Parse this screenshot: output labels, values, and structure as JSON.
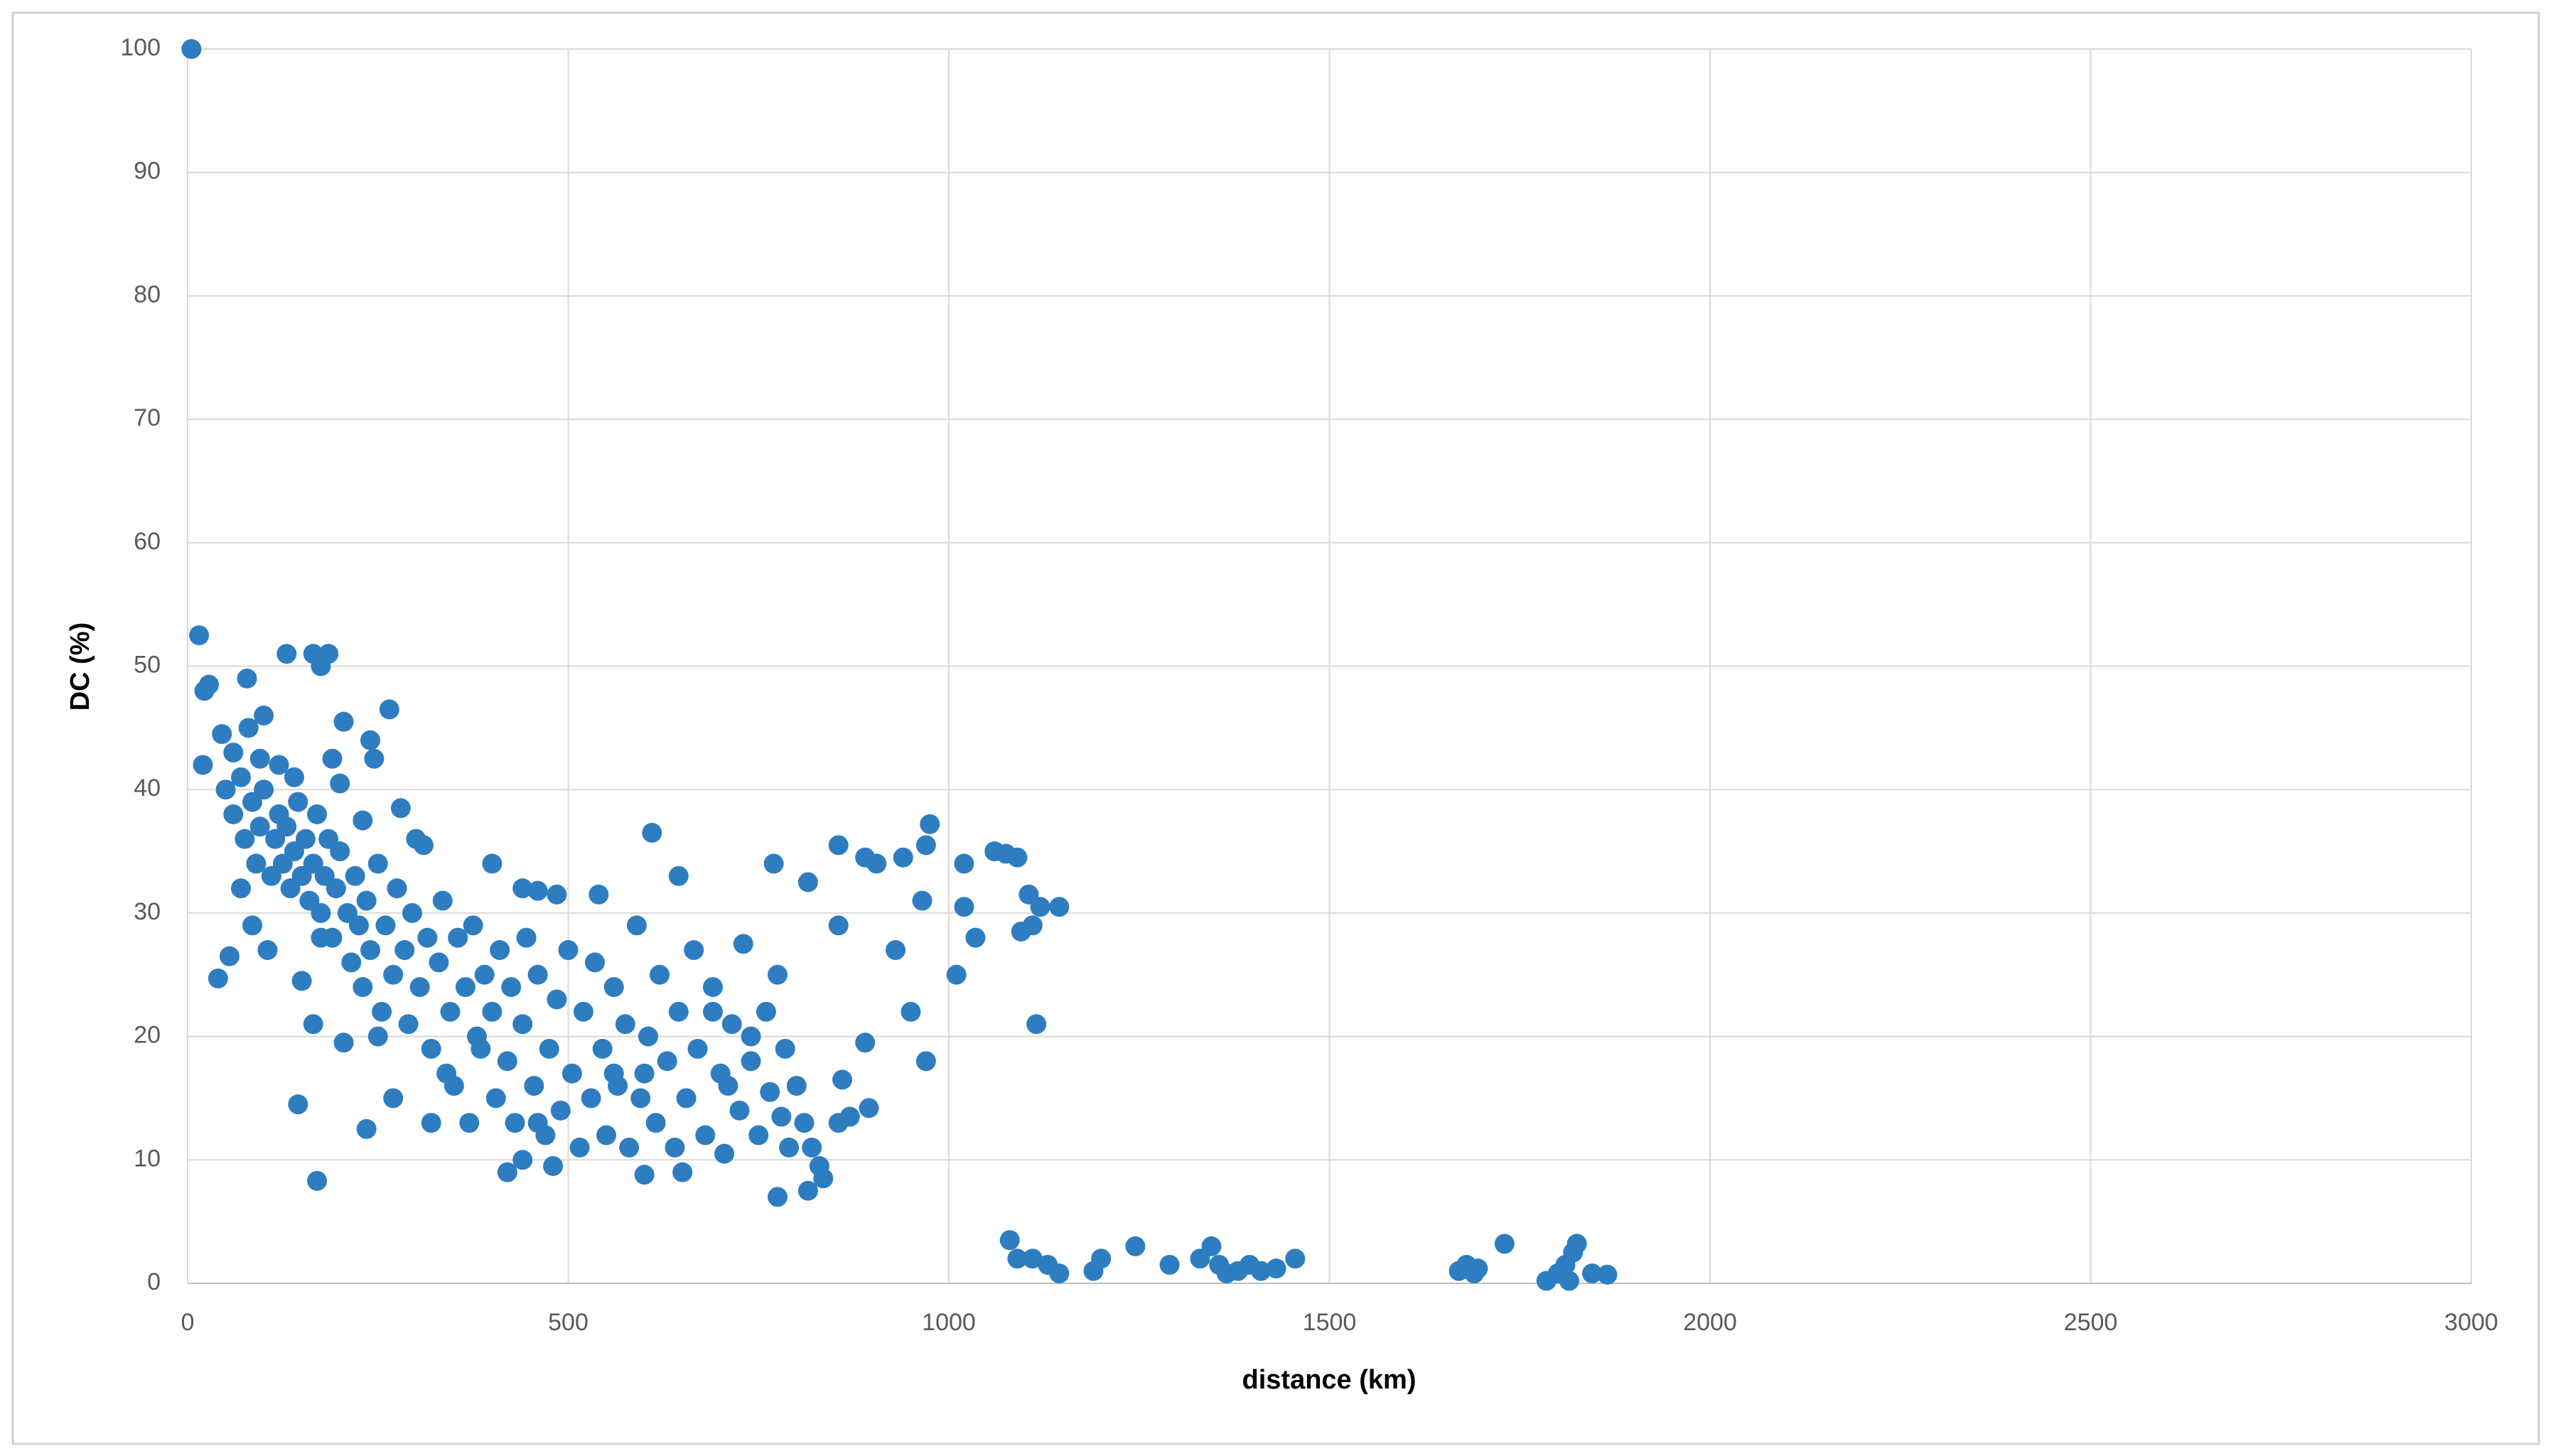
{
  "chart_data": {
    "type": "scatter",
    "x_label": "distance (km)",
    "y_label": "DC (%)",
    "color": "#2e7dc0",
    "grid": true,
    "xlim": [
      0,
      3000
    ],
    "xticks": [
      0,
      500,
      1000,
      1500,
      2000,
      2500,
      3000
    ],
    "ylim": [
      0,
      100
    ],
    "yticks": [
      0,
      10,
      20,
      30,
      40,
      50,
      60,
      70,
      80,
      90,
      100
    ],
    "x": [
      5,
      15,
      20,
      22,
      28,
      40,
      45,
      55,
      60,
      70,
      78,
      80,
      85,
      100,
      105,
      130,
      145,
      150,
      165,
      170,
      165,
      175,
      185,
      190,
      200,
      205,
      235,
      240,
      245,
      265,
      280,
      300,
      310,
      400,
      440,
      460,
      485,
      540,
      610,
      645,
      420,
      440,
      480,
      600,
      650,
      775,
      815,
      835,
      770,
      815,
      855,
      855,
      890,
      905,
      940,
      970,
      975,
      965,
      930,
      950,
      970,
      1010,
      1020,
      1020,
      1035,
      1060,
      1075,
      1090,
      1095,
      1105,
      1110,
      1120,
      1145,
      1115,
      890,
      895,
      870,
      855,
      860,
      830,
      1080,
      1090,
      1110,
      1130,
      1145,
      1190,
      1200,
      1245,
      1290,
      1330,
      1345,
      1355,
      1365,
      1380,
      1395,
      1410,
      1430,
      1455,
      1670,
      1680,
      1690,
      1695,
      1730,
      1785,
      1800,
      1810,
      1815,
      1820,
      1825,
      1845,
      1865,
      50,
      60,
      70,
      75,
      85,
      90,
      95,
      100,
      110,
      115,
      120,
      125,
      130,
      135,
      140,
      145,
      150,
      155,
      160,
      165,
      170,
      175,
      180,
      185,
      190,
      195,
      200,
      210,
      215,
      220,
      225,
      230,
      235,
      240,
      250,
      255,
      260,
      270,
      275,
      285,
      290,
      295,
      305,
      315,
      320,
      330,
      335,
      345,
      350,
      355,
      365,
      370,
      375,
      385,
      390,
      400,
      405,
      410,
      420,
      425,
      430,
      440,
      445,
      455,
      460,
      470,
      475,
      485,
      490,
      500,
      505,
      515,
      520,
      530,
      535,
      545,
      550,
      560,
      565,
      575,
      580,
      590,
      595,
      605,
      615,
      620,
      630,
      640,
      645,
      655,
      665,
      670,
      680,
      690,
      700,
      705,
      715,
      725,
      730,
      740,
      750,
      760,
      765,
      775,
      785,
      790,
      800,
      810,
      820,
      780,
      740,
      710,
      690,
      600,
      560,
      460,
      380,
      340,
      320,
      250,
      230,
      205,
      270,
      175,
      120,
      95,
      140
    ],
    "values": [
      100,
      52.5,
      42,
      48,
      48.5,
      24.7,
      44.5,
      26.5,
      43,
      32,
      49,
      45,
      29,
      46,
      27,
      51,
      14.5,
      24.5,
      21,
      8.3,
      51,
      50,
      51,
      42.5,
      40.5,
      45.5,
      12.5,
      44,
      42.5,
      46.5,
      38.5,
      36,
      35.5,
      34,
      32,
      31.8,
      31.5,
      31.5,
      36.5,
      33,
      9,
      10,
      9.5,
      8.8,
      9,
      7,
      7.5,
      8.5,
      34,
      32.5,
      35.5,
      29,
      34.5,
      34,
      34.5,
      35.5,
      37.2,
      31,
      27,
      22,
      18,
      25,
      34,
      30.5,
      28,
      35,
      34.8,
      34.5,
      28.5,
      31.5,
      29,
      30.5,
      30.5,
      21,
      19.5,
      14.2,
      13.5,
      13,
      16.5,
      9.5,
      3.5,
      2,
      2,
      1.5,
      0.8,
      1,
      2,
      3,
      1.5,
      2,
      3,
      1.5,
      0.8,
      1,
      1.5,
      1,
      1.2,
      2,
      1,
      1.5,
      0.8,
      1.2,
      3.2,
      0.2,
      0.8,
      1.5,
      0.2,
      2.5,
      3.2,
      0.8,
      0.7,
      40,
      38,
      41,
      36,
      39,
      34,
      37,
      40,
      33,
      36,
      38,
      34,
      37,
      32,
      35,
      39,
      33,
      36,
      31,
      34,
      38,
      30,
      33,
      36,
      28,
      32,
      35,
      30,
      26,
      33,
      29,
      24,
      31,
      27,
      34,
      22,
      29,
      25,
      32,
      27,
      21,
      30,
      24,
      28,
      19,
      26,
      31,
      22,
      16,
      28,
      24,
      13,
      29,
      19,
      25,
      22,
      15,
      27,
      18,
      24,
      13,
      21,
      28,
      16,
      25,
      12,
      19,
      23,
      14,
      27,
      17,
      11,
      22,
      15,
      26,
      19,
      12,
      24,
      16,
      21,
      11,
      29,
      15,
      20,
      13,
      25,
      18,
      11,
      22,
      15,
      27,
      19,
      12,
      24,
      17,
      10.5,
      21,
      14,
      27.5,
      18,
      12,
      22,
      15.5,
      25,
      19,
      11,
      16,
      13,
      11,
      13.5,
      20,
      16,
      22,
      17,
      17,
      13,
      20,
      17,
      13,
      20,
      37.5,
      19.5,
      15,
      28,
      42,
      42.5,
      41
    ]
  }
}
